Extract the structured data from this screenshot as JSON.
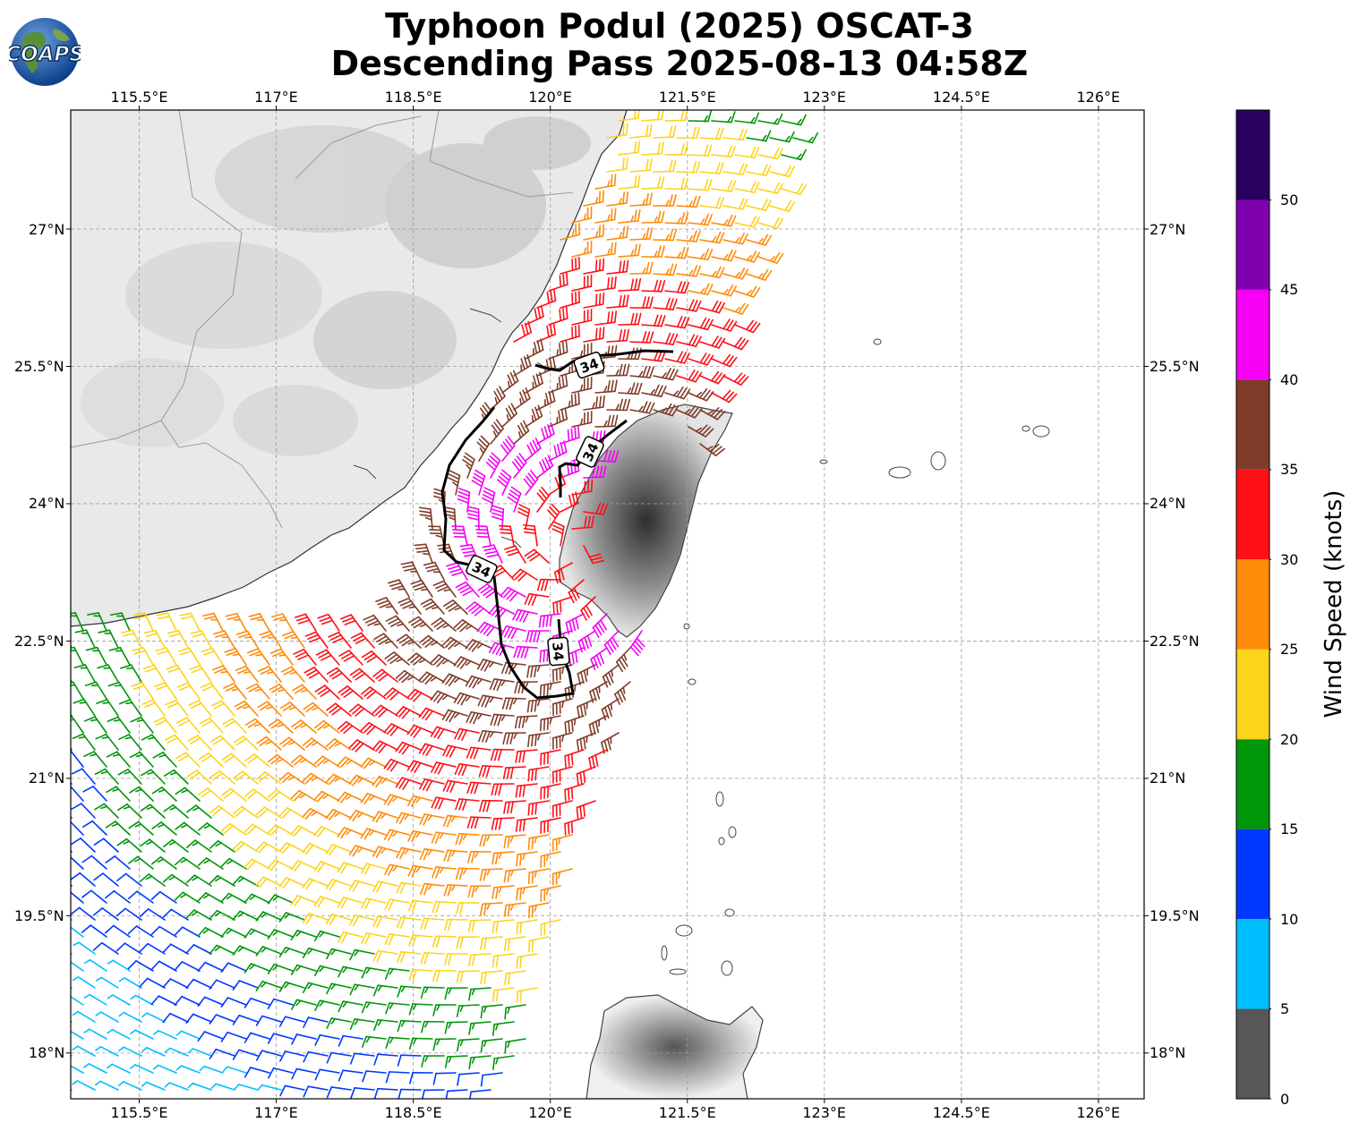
{
  "title": {
    "line1": "Typhoon Podul (2025) OSCAT-3",
    "line2": "Descending Pass 2025-08-13 04:58Z"
  },
  "logo": {
    "text": "COAPS",
    "icon": "globe-icon"
  },
  "axes": {
    "lon_labels": [
      "115.5°E",
      "117°E",
      "118.5°E",
      "120°E",
      "121.5°E",
      "123°E",
      "124.5°E",
      "126°E"
    ],
    "lat_labels": [
      "27°N",
      "25.5°N",
      "24°N",
      "22.5°N",
      "21°N",
      "19.5°N",
      "18°N"
    ],
    "lon_range": [
      114.75,
      126.5
    ],
    "lat_range": [
      17.5,
      28.3
    ]
  },
  "colorbar": {
    "title": "Wind Speed (knots)",
    "ticks": [
      "0",
      "5",
      "10",
      "15",
      "20",
      "25",
      "30",
      "35",
      "40",
      "45",
      "50"
    ],
    "bands": [
      {
        "min": 0,
        "max": 5,
        "color": "#575757"
      },
      {
        "min": 5,
        "max": 10,
        "color": "#00bfff"
      },
      {
        "min": 10,
        "max": 15,
        "color": "#0038ff"
      },
      {
        "min": 15,
        "max": 20,
        "color": "#00960a"
      },
      {
        "min": 20,
        "max": 25,
        "color": "#fcd41c"
      },
      {
        "min": 25,
        "max": 30,
        "color": "#ff8b0a"
      },
      {
        "min": 30,
        "max": 35,
        "color": "#ff0f16"
      },
      {
        "min": 35,
        "max": 40,
        "color": "#803c28"
      },
      {
        "min": 40,
        "max": 45,
        "color": "#f500f5"
      },
      {
        "min": 45,
        "max": 50,
        "color": "#8000b0"
      },
      {
        "min": 50,
        "max": 55,
        "color": "#280060"
      }
    ]
  },
  "contour": {
    "label": "34"
  },
  "chart_data": {
    "type": "wind-barb map",
    "title": "Typhoon Podul (2025) OSCAT-3 Descending Pass 2025-08-13 04:58Z",
    "units": "knots",
    "storm_center_lonlat": [
      120.2,
      23.5
    ],
    "wind_34kt_contour_label": "34"
  }
}
